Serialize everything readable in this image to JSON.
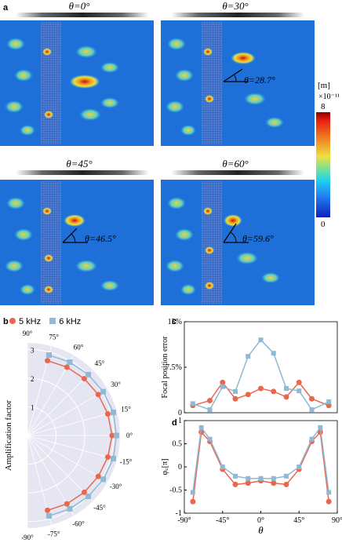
{
  "panel_a": {
    "letter": "a",
    "titles": [
      "θ=0°",
      "θ=30°",
      "θ=45°",
      "θ=60°"
    ],
    "annotations": [
      "",
      "θ=28.7°",
      "θ=46.5°",
      "θ=59.6°"
    ],
    "colorbar": {
      "unit": "[m]",
      "exponent": "×10⁻¹¹",
      "max_label": "8",
      "min_label": "0"
    }
  },
  "panel_b": {
    "letter": "b",
    "legend": [
      "5 kHz",
      "6 kHz"
    ],
    "ylabel": "Amplification factor",
    "radial_ticks": [
      "1",
      "2",
      "3"
    ],
    "angle_labels": [
      "90°",
      "75°",
      "60°",
      "45°",
      "30°",
      "15°",
      "0°",
      "-15°",
      "-30°",
      "-45°",
      "-60°",
      "-75°",
      "-90°"
    ]
  },
  "panel_c": {
    "letter": "c",
    "ylabel": "Focal position error",
    "yticks": [
      "15%",
      "7.5%",
      "0"
    ]
  },
  "panel_d": {
    "letter": "d",
    "ylabel": "φ꜀[π]",
    "yticks": [
      "1",
      "0.5",
      "0",
      "-0.5",
      "-1"
    ],
    "xticks": [
      "-90°",
      "-45°",
      "0°",
      "45°",
      "90°"
    ],
    "xlabel": "θ"
  },
  "colors": {
    "series_5khz": "#e8684f",
    "series_6khz": "#8fb9d4"
  },
  "chart_data": [
    {
      "type": "scatter",
      "title": "",
      "subtype": "polar",
      "theta_deg": [
        -75,
        -60,
        -45,
        -30,
        -15,
        0,
        15,
        30,
        45,
        60,
        75
      ],
      "rlim": [
        0,
        3
      ],
      "series": [
        {
          "name": "5 kHz",
          "values": [
            2.7,
            2.75,
            2.8,
            2.85,
            2.9,
            2.95,
            2.9,
            2.85,
            2.8,
            2.75,
            2.7
          ]
        },
        {
          "name": "6 kHz",
          "values": [
            2.9,
            2.95,
            3.0,
            3.05,
            3.1,
            3.1,
            3.1,
            3.05,
            3.0,
            2.95,
            2.9
          ]
        }
      ]
    },
    {
      "type": "line",
      "x": [
        -80,
        -60,
        -45,
        -30,
        -15,
        0,
        15,
        30,
        45,
        60,
        80
      ],
      "xlim": [
        -90,
        90
      ],
      "ylim": [
        0,
        15
      ],
      "ylabel": "Focal position error",
      "series": [
        {
          "name": "5 kHz",
          "values": [
            1.2,
            2.0,
            5.0,
            2.3,
            3.0,
            4.0,
            3.5,
            2.6,
            5.0,
            2.3,
            1.2
          ]
        },
        {
          "name": "6 kHz",
          "values": [
            1.5,
            0.5,
            4.3,
            3.5,
            9.3,
            12.0,
            9.8,
            4.0,
            3.6,
            0.5,
            1.8
          ]
        }
      ]
    },
    {
      "type": "line",
      "x": [
        -80,
        -70,
        -60,
        -45,
        -30,
        -15,
        0,
        15,
        30,
        45,
        60,
        70,
        80
      ],
      "xlim": [
        -90,
        90
      ],
      "ylim": [
        -1,
        1
      ],
      "xlabel": "θ",
      "series": [
        {
          "name": "5 kHz",
          "values": [
            -0.75,
            0.75,
            0.55,
            -0.05,
            -0.38,
            -0.35,
            -0.3,
            -0.35,
            -0.38,
            -0.05,
            0.55,
            0.75,
            -0.75
          ]
        },
        {
          "name": "6 kHz",
          "values": [
            -0.55,
            0.85,
            0.6,
            0.0,
            -0.2,
            -0.25,
            -0.25,
            -0.25,
            -0.2,
            0.0,
            0.6,
            0.85,
            -0.55
          ]
        }
      ]
    }
  ]
}
